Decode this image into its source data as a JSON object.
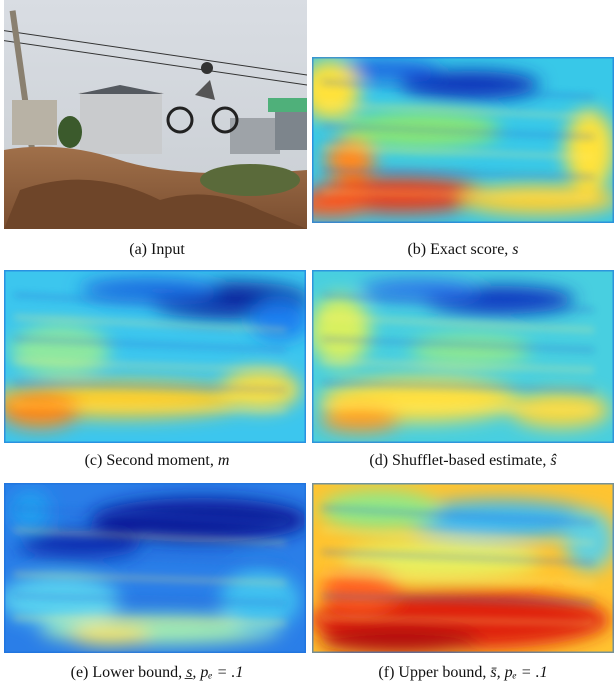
{
  "figure": {
    "panels": [
      {
        "caption": {
          "text": "(a) Input",
          "math": ""
        }
      },
      {
        "caption": {
          "text": "(b) Exact score, ",
          "math": "s"
        }
      },
      {
        "caption": {
          "text": "(c) Second moment, ",
          "math": "m"
        }
      },
      {
        "caption": {
          "text": "(d) Shufflet-based estimate, ",
          "math": "ŝ"
        }
      },
      {
        "caption": {
          "text": "(e) Lower bound, ",
          "math": "s̲, pₑ = .1"
        }
      },
      {
        "caption": {
          "text": "(f) Upper bound, ",
          "math": "s̄, pₑ = .1"
        }
      }
    ]
  }
}
